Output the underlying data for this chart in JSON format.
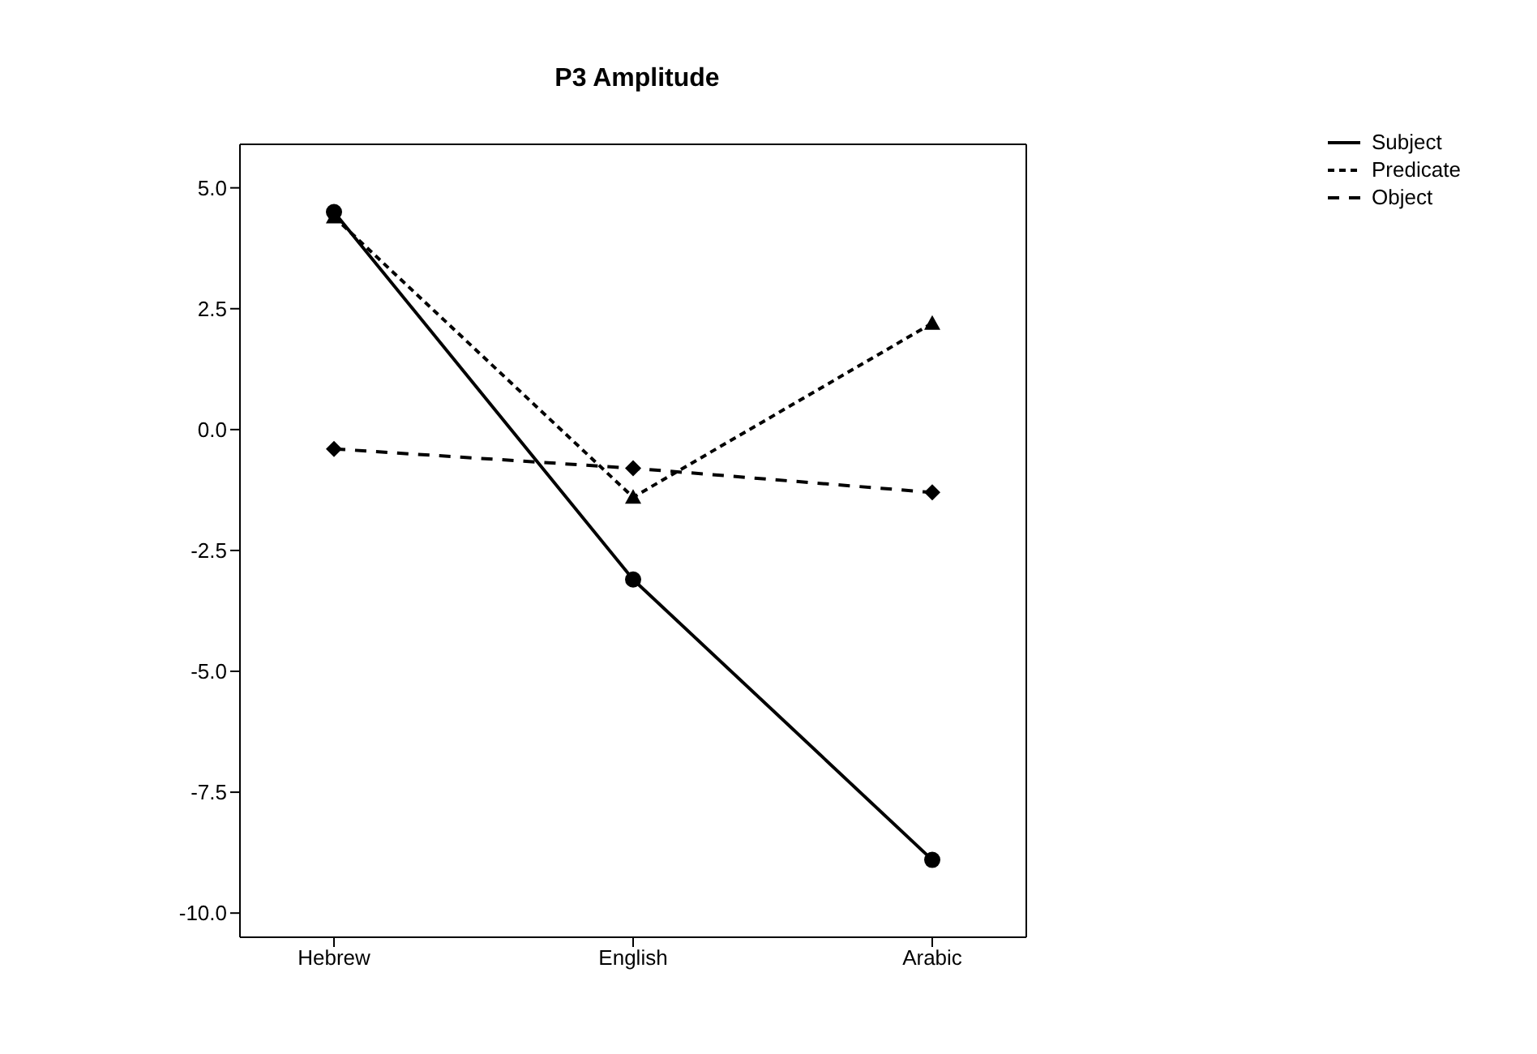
{
  "chart_data": {
    "type": "line",
    "title": "P3 Amplitude",
    "categories": [
      "Hebrew",
      "English",
      "Arabic"
    ],
    "series": [
      {
        "name": "Subject",
        "color": "#000000",
        "values": [
          4.5,
          -3.1,
          -8.9
        ],
        "marker": "circle",
        "line_style": "solid"
      },
      {
        "name": "Predicate",
        "color": "#000000",
        "values": [
          4.4,
          -1.4,
          2.2
        ],
        "marker": "triangle",
        "line_style": "dotted"
      },
      {
        "name": "Object",
        "color": "#000000",
        "values": [
          -0.4,
          -0.8,
          -1.3
        ],
        "marker": "diamond",
        "line_style": "dashed"
      }
    ],
    "ylim": [
      -10.5,
      5.9
    ],
    "yticks": [
      {
        "value": 5,
        "label": "5.0"
      },
      {
        "value": 2.5,
        "label": "2.5"
      },
      {
        "value": 0,
        "label": "0.0"
      },
      {
        "value": -2.5,
        "label": "-2.5"
      },
      {
        "value": -5,
        "label": "-5.0"
      },
      {
        "value": -7.5,
        "label": "-7.5"
      },
      {
        "value": -10,
        "label": "-10.0"
      }
    ],
    "grid": false,
    "legend": "top right"
  }
}
